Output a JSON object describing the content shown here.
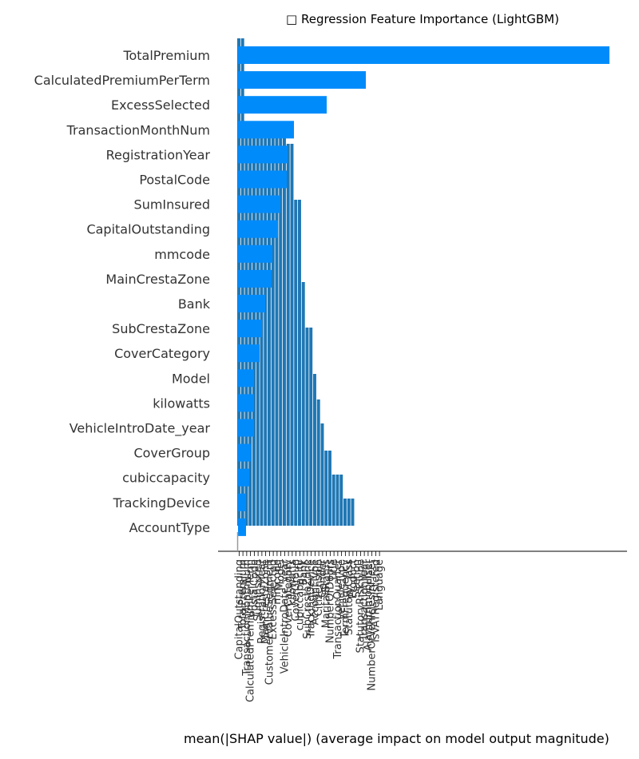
{
  "chart_data": {
    "type": "bar",
    "orientation": "horizontal",
    "title": "□ Regression Feature Importance (LightGBM)",
    "xlabel": "mean(|SHAP value|) (average impact on model output magnitude)",
    "ylabel": "",
    "grid": false,
    "legend": "none",
    "colors": {
      "shap_bars": "#008bfb",
      "overlay_bars": "#1f77b4",
      "axis": "#000000",
      "spine": "#999999"
    },
    "categories": [
      "TotalPremium",
      "CalculatedPremiumPerTerm",
      "ExcessSelected",
      "TransactionMonthNum",
      "RegistrationYear",
      "PostalCode",
      "SumInsured",
      "CapitalOutstanding",
      "mmcode",
      "MainCrestaZone",
      "Bank",
      "SubCrestaZone",
      "CoverCategory",
      "Model",
      "kilowatts",
      "VehicleIntroDate_year",
      "CoverGroup",
      "cubiccapacity",
      "TrackingDevice",
      "AccountType"
    ],
    "values": [
      465,
      160,
      111,
      70,
      62,
      61,
      53,
      50,
      43,
      42,
      34,
      30,
      27,
      20,
      20,
      20,
      16,
      14,
      10,
      10
    ],
    "overlay_series": {
      "x_ticks": [
        "CapitalOutstanding",
        "TotalPremium",
        "TransactionMonthNum",
        "CalculatedPremiumPerTerm",
        "PostalCode",
        "SumInsured",
        "RegistrationYear",
        "MainCrestaZone",
        "CustomerValueSegment",
        "ExcessSelected",
        "mmcode",
        "Model",
        "VehicleIntroDate_year",
        "CoverCategory",
        "kilowatts",
        "CoverGroup",
        "cubiccapacity",
        "Bank",
        "SubCrestaZone",
        "TrackingDevice",
        "AccountType",
        "Citizenship",
        "Gender",
        "MaritalStatus",
        "NumberOfDoors",
        "Title",
        "TransactionQuarter",
        "VehicleType",
        "TermFrequency",
        "StatutoryClass",
        "Product",
        "Section",
        "StatutoryRiskType",
        "TransactionYear",
        "AlarmImmobiliser",
        "NumberOfVehiclesInFleet",
        "IsVATRegistered",
        "Language"
      ],
      "heights": [
        610,
        610,
        505,
        505,
        505,
        495,
        495,
        495,
        495,
        495,
        485,
        485,
        485,
        478,
        478,
        408,
        408,
        305,
        248,
        248,
        190,
        158,
        128,
        94,
        94,
        64,
        64,
        64,
        34,
        34,
        34,
        0,
        0,
        0,
        0,
        0,
        0,
        0
      ]
    }
  }
}
